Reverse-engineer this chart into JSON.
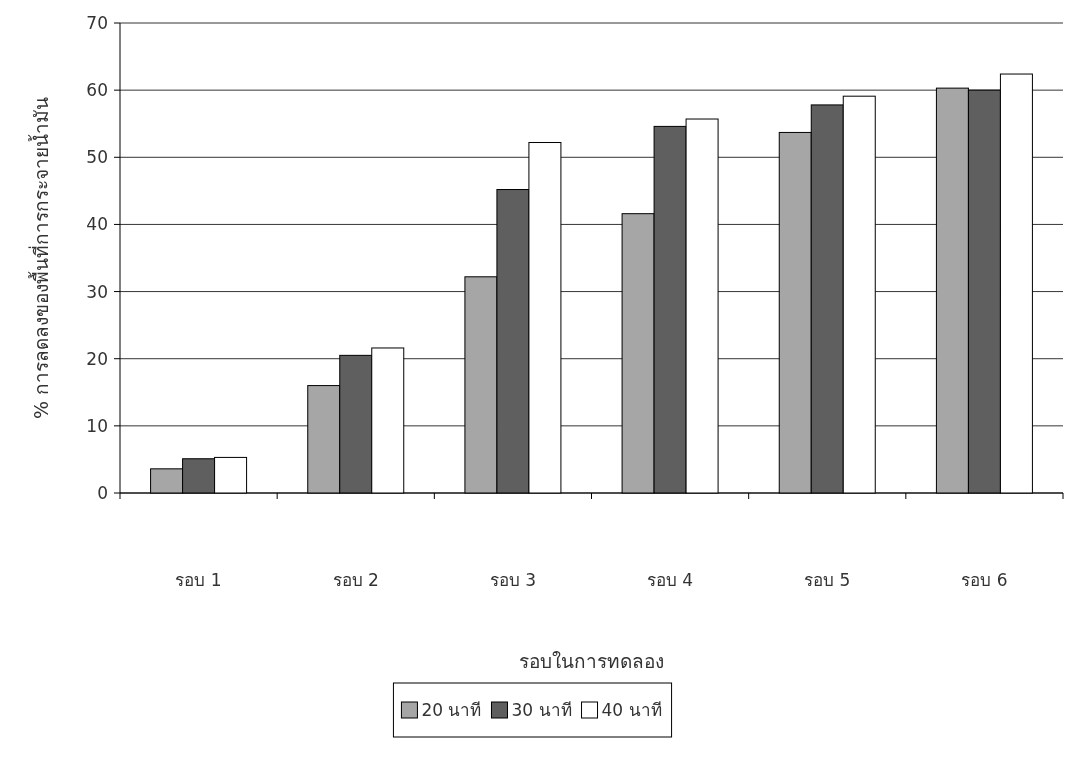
{
  "chart_data": {
    "type": "bar",
    "categories": [
      "รอบ 1",
      "รอบ 2",
      "รอบ 3",
      "รอบ 4",
      "รอบ 5",
      "รอบ 6"
    ],
    "series": [
      {
        "name": "20 นาที",
        "color": "#a6a6a6",
        "values": [
          3.6,
          16.0,
          32.2,
          41.6,
          53.7,
          60.3
        ]
      },
      {
        "name": "30 นาที",
        "color": "#5f5f5f",
        "values": [
          5.1,
          20.5,
          45.2,
          54.6,
          57.8,
          60.0
        ]
      },
      {
        "name": "40 นาที",
        "color": "#ffffff",
        "values": [
          5.3,
          21.6,
          52.2,
          55.7,
          59.1,
          62.4
        ]
      }
    ],
    "xlabel": "รอบในการทดลอง",
    "ylabel": "% การลดลงของพื้นที่การกระจายน้ำมัน",
    "ylim": [
      0,
      70
    ],
    "yticks": [
      0,
      10,
      20,
      30,
      40,
      50,
      60,
      70
    ],
    "grid": "y",
    "legend": "bottom"
  }
}
